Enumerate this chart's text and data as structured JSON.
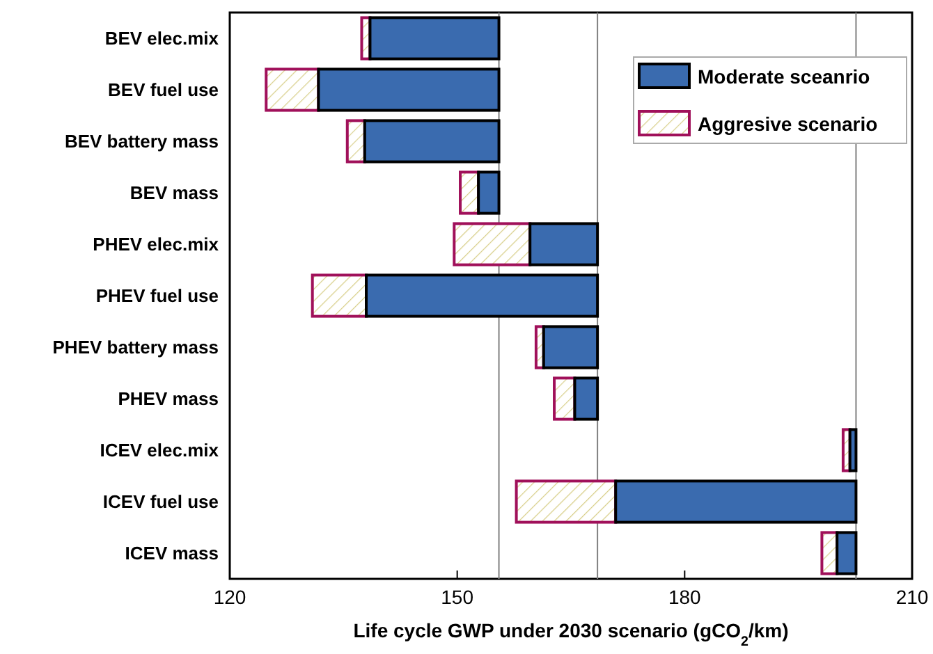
{
  "chart_data": {
    "type": "bar",
    "orientation": "horizontal",
    "xlabel": "Life cycle GWP under 2030 scenario (gCO$_{2}$/km)",
    "categories": [
      "BEV elec.mix",
      "BEV fuel use",
      "BEV battery mass",
      "BEV mass",
      "PHEV elec.mix",
      "PHEV fuel use",
      "PHEV battery mass",
      "PHEV mass",
      "ICEV elec.mix",
      "ICEV fuel use",
      "ICEV mass"
    ],
    "xlim": [
      120,
      210
    ],
    "xticks": [
      120,
      150,
      180,
      210
    ],
    "grid": false,
    "legend": "top right",
    "series": [
      {
        "name": "Aggresive scenario",
        "color": "#a0105a",
        "base": [
          137.4,
          124.8,
          135.5,
          150.4,
          149.6,
          130.9,
          160.4,
          162.8,
          200.9,
          157.8,
          198.1
        ],
        "values": [
          1.1,
          6.9,
          2.3,
          2.4,
          10.0,
          7.1,
          1.0,
          2.7,
          0.9,
          13.1,
          2.0
        ]
      },
      {
        "name": "Moderate sceanrio",
        "color": "#3a6baf",
        "base": [
          138.5,
          131.7,
          137.8,
          152.8,
          159.6,
          138.0,
          161.4,
          165.5,
          201.8,
          170.9,
          200.1
        ],
        "values": [
          17.0,
          23.8,
          17.7,
          2.7,
          8.9,
          30.5,
          7.1,
          3.0,
          0.8,
          31.7,
          2.5
        ]
      }
    ],
    "ref_lines": [
      {
        "axis": "x",
        "value": 155.5,
        "color": "#808080"
      },
      {
        "axis": "x",
        "value": 168.5,
        "color": "#808080"
      },
      {
        "axis": "x",
        "value": 202.6,
        "color": "#808080"
      }
    ]
  }
}
